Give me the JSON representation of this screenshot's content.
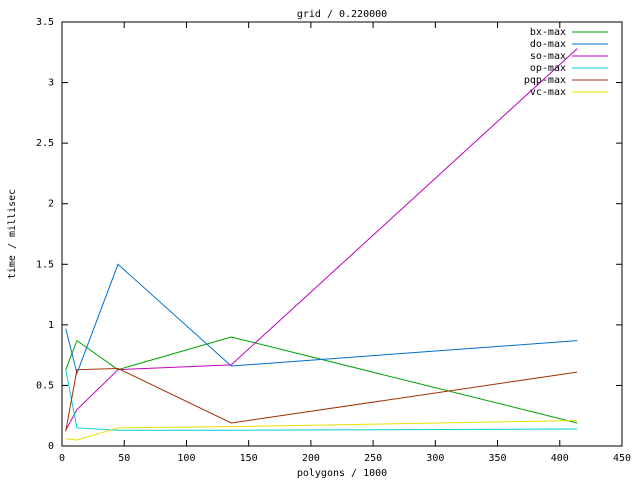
{
  "chart_data": {
    "type": "line",
    "title": "grid / 0.220000",
    "xlabel": "polygons / 1000",
    "ylabel": "time / millisec",
    "x": [
      3,
      12,
      45,
      136,
      414
    ],
    "series": [
      {
        "name": "bx-max",
        "color": "#00a000",
        "values": [
          0.63,
          0.87,
          0.63,
          0.9,
          0.19
        ]
      },
      {
        "name": "do-max",
        "color": "#0070d0",
        "values": [
          0.97,
          0.6,
          1.5,
          0.66,
          0.87
        ]
      },
      {
        "name": "so-max",
        "color": "#c000c0",
        "values": [
          0.13,
          0.3,
          0.63,
          0.67,
          3.28
        ]
      },
      {
        "name": "op-max",
        "color": "#00d0d0",
        "values": [
          0.63,
          0.15,
          0.13,
          0.13,
          0.14
        ]
      },
      {
        "name": "pqp-max",
        "color": "#a03000",
        "values": [
          0.12,
          0.63,
          0.64,
          0.19,
          0.61
        ]
      },
      {
        "name": "vc-max",
        "color": "#e8e000",
        "values": [
          0.06,
          0.05,
          0.15,
          0.16,
          0.21
        ]
      }
    ],
    "xlim": [
      0,
      450
    ],
    "xticks": [
      0,
      50,
      100,
      150,
      200,
      250,
      300,
      350,
      400,
      450
    ],
    "ylim": [
      0,
      3.5
    ],
    "yticks": [
      0,
      0.5,
      1,
      1.5,
      2,
      2.5,
      3,
      3.5
    ],
    "grid": false,
    "legend": "top-right"
  }
}
